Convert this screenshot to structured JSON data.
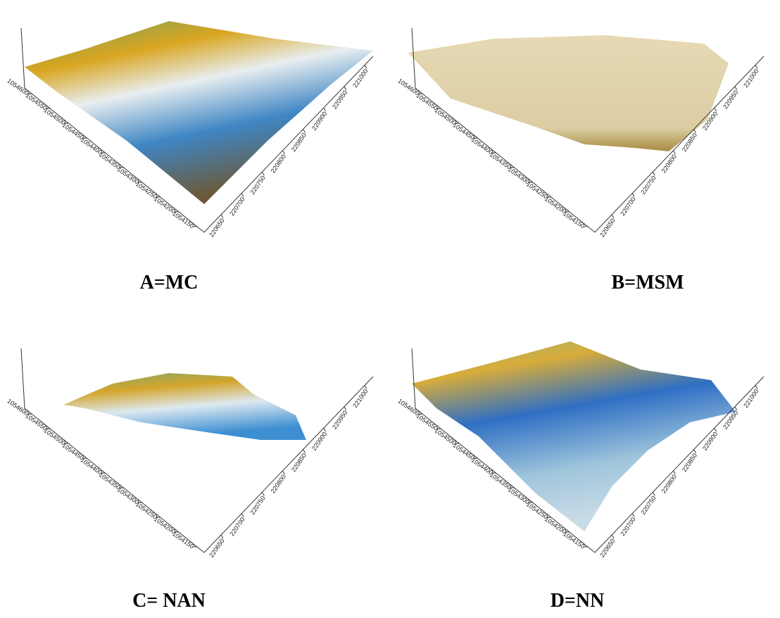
{
  "panels": [
    {
      "caption": "A=MC",
      "y_ticks": [
        "1054600",
        "1054550",
        "1054500",
        "1054450",
        "1054400",
        "1054350",
        "1054300",
        "1054250",
        "1054200",
        "1054150"
      ],
      "x_ticks": [
        "220650",
        "220700",
        "220750",
        "220800",
        "220850",
        "220900",
        "220950",
        "221000"
      ]
    },
    {
      "caption": "B=MSM",
      "y_ticks": [
        "1054600",
        "1054550",
        "1054500",
        "1054450",
        "1054400",
        "1054350",
        "1054300",
        "1054250",
        "1054200",
        "1054150"
      ],
      "x_ticks": [
        "220650",
        "220700",
        "220750",
        "220800",
        "220850",
        "220900",
        "220950",
        "221000"
      ]
    },
    {
      "caption": "C= NAN",
      "y_ticks": [
        "1054600",
        "1054550",
        "1054500",
        "1054450",
        "1054400",
        "1054350",
        "1054300",
        "1054250",
        "1054200",
        "1054150"
      ],
      "x_ticks": [
        "220650",
        "220700",
        "220750",
        "220800",
        "220850",
        "220900",
        "220950",
        "221000"
      ]
    },
    {
      "caption": "D=NN",
      "y_ticks": [
        "1054600",
        "1054550",
        "1054500",
        "1054450",
        "1054400",
        "1054350",
        "1054300",
        "1054250",
        "1054200",
        "1054150"
      ],
      "x_ticks": [
        "220650",
        "220700",
        "220750",
        "220800",
        "220850",
        "220900",
        "220950",
        "221000"
      ]
    }
  ]
}
